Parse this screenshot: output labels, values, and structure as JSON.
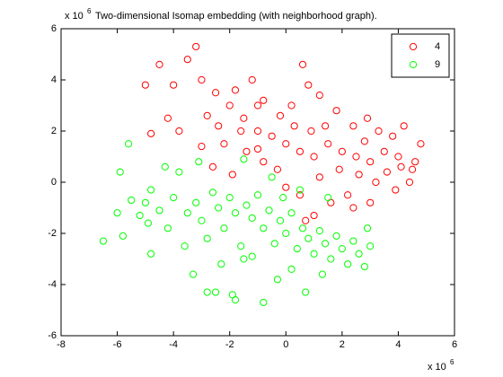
{
  "chart_data": {
    "type": "scatter",
    "title": "Two-dimensional Isomap embedding (with neighborhood graph).",
    "y_scale_label": [
      "x 10",
      "6"
    ],
    "x_scale_label": [
      "x 10",
      "6"
    ],
    "xlim": [
      -8,
      6
    ],
    "ylim": [
      -6,
      6
    ],
    "xticks": [
      -8,
      -6,
      -4,
      -2,
      0,
      2,
      4,
      6
    ],
    "yticks": [
      -6,
      -4,
      -2,
      0,
      2,
      4,
      6
    ],
    "grid": false,
    "legend": "top-right",
    "series": [
      {
        "name": "4",
        "color": "#ff0000",
        "x": [
          -1.5,
          -1,
          -0.5,
          0,
          0.5,
          1,
          1.5,
          2,
          2.5,
          3,
          3.5,
          4,
          4.5,
          -2,
          -2.5,
          -3,
          -3.2,
          -3.5,
          -4,
          -4.5,
          -5,
          -4.2,
          -3.8,
          -2.8,
          -1.8,
          -1.2,
          -0.8,
          0.2,
          0.6,
          0.8,
          1.2,
          1.8,
          2.4,
          2.9,
          3.3,
          3.8,
          4.2,
          4.8,
          4.6,
          4.4,
          3.9,
          3.2,
          2.6,
          2.2,
          1.6,
          1,
          0.5,
          0,
          -0.3,
          -0.8,
          -1.4,
          -2.2,
          -2.6,
          -1.9,
          -3,
          -1,
          0.3,
          0.9,
          1.4,
          1.9,
          2.8,
          3.6,
          -0.2,
          -1.6,
          -2.4,
          1.2,
          2.4,
          0.7,
          -4.8,
          -1,
          3,
          4.1
        ],
        "y": [
          2.5,
          2,
          1.8,
          1.5,
          1.2,
          1,
          1.5,
          1.2,
          1,
          0.8,
          1.2,
          1,
          0.5,
          3,
          3.5,
          4,
          5.3,
          4.8,
          3.8,
          4.6,
          3.8,
          2.5,
          2,
          2.6,
          3.6,
          4,
          3.2,
          3,
          4.6,
          3.8,
          3.4,
          2.8,
          2.2,
          2.5,
          2,
          1.8,
          2.2,
          1.5,
          0.8,
          0,
          -0.3,
          0,
          0.3,
          -0.5,
          -0.8,
          -1.3,
          -0.5,
          -0.2,
          0.5,
          0.8,
          1.2,
          1.5,
          0.6,
          0.3,
          1.4,
          1.3,
          2.2,
          2,
          2.2,
          0.5,
          1.6,
          0.4,
          2.6,
          2,
          2.2,
          0.2,
          -1,
          -1.5,
          1.9,
          3,
          -0.8,
          0.6
        ]
      },
      {
        "name": "9",
        "color": "#00ff00",
        "x": [
          -6.5,
          -6,
          -5.8,
          -5.6,
          -5.5,
          -5.2,
          -5,
          -4.8,
          -4.5,
          -4.2,
          -4,
          -3.8,
          -3.5,
          -3.2,
          -3,
          -2.8,
          -2.6,
          -2.4,
          -2.2,
          -2,
          -1.8,
          -1.6,
          -1.4,
          -1.2,
          -1,
          -0.8,
          -0.6,
          -0.4,
          -0.2,
          0,
          0.2,
          0.4,
          0.6,
          0.8,
          1,
          1.2,
          1.4,
          1.6,
          1.8,
          2,
          2.2,
          2.4,
          2.6,
          2.8,
          3,
          -2.8,
          -2.5,
          -1.9,
          -1.8,
          -0.8,
          0.7,
          -0.3,
          -1.5,
          -4.8,
          -3.6,
          -4.3,
          -3.1,
          -1.5,
          -0.5,
          0.5,
          1.5,
          -5.9,
          -4.9,
          -2.3,
          -1.2,
          0.2,
          1.3,
          2.9,
          -3.3,
          -0.1
        ],
        "y": [
          -2.3,
          -1.2,
          -2.1,
          1.5,
          -0.7,
          -1.3,
          -0.8,
          -0.3,
          -1.1,
          -1.8,
          -0.6,
          0.4,
          -1.2,
          -0.8,
          -1.5,
          -2.2,
          -0.4,
          -1,
          -1.8,
          -0.6,
          -1.2,
          -2.5,
          -0.9,
          -1.4,
          -0.5,
          -1.8,
          -1.1,
          -2.4,
          -1.5,
          -2,
          -1.2,
          -2.6,
          -1.8,
          -2.2,
          -2.8,
          -1.9,
          -2.4,
          -3,
          -2.1,
          -2.6,
          -3.2,
          -2.3,
          -2.8,
          -3.3,
          -2.5,
          -4.3,
          -4.3,
          -4.4,
          -4.6,
          -4.7,
          -4.3,
          -3.8,
          -3,
          -2.8,
          -2.5,
          0.6,
          0.8,
          0.9,
          0.2,
          -0.3,
          -0.6,
          0.4,
          -1.6,
          -3.2,
          -2.9,
          -3.4,
          -3.6,
          -1.8,
          -3.6,
          -0.6
        ]
      }
    ]
  }
}
